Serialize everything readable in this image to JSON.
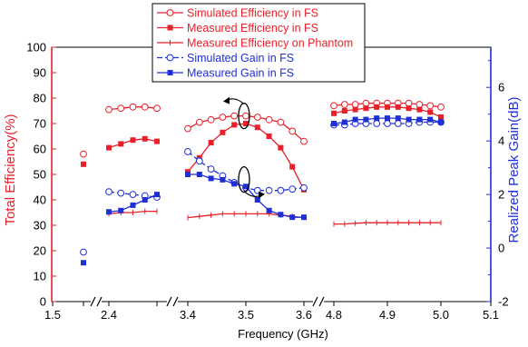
{
  "chart_data": {
    "type": "line",
    "xlabel": "Frequency (GHz)",
    "ylabel_left": "Total Efficiency(%)",
    "ylabel_right": "Realized Peak Gain(dB)",
    "x_ticks": [
      "1.5",
      "2.0",
      "2.4",
      "2.8",
      "3.4",
      "3.5",
      "3.6",
      "4.8",
      "4.9",
      "5.0",
      "5.1"
    ],
    "x_tick_positions": [
      1.5,
      2.0,
      2.4,
      2.8,
      3.4,
      3.5,
      3.6,
      4.8,
      4.9,
      5.0,
      5.1
    ],
    "x_tick_labels_shown": [
      "1.5",
      "",
      "2.4",
      "",
      "3.4",
      "3.5",
      "3.6",
      "4.8",
      "4.9",
      "5.0",
      "5.1"
    ],
    "y_left": {
      "min": 0,
      "max": 100,
      "ticks": [
        0,
        10,
        20,
        30,
        40,
        50,
        60,
        70,
        80,
        90,
        100
      ],
      "color": "#e8202a"
    },
    "y_right": {
      "min": -2,
      "max": 7.5,
      "ticks": [
        -2,
        0,
        2,
        4,
        6
      ],
      "color": "#1f2fd6"
    },
    "axis_breaks": [
      "2.0–2.4",
      "2.8–3.4",
      "3.6–4.8"
    ],
    "legend_position": "top-center",
    "series": [
      {
        "name": "Simulated Efficiency in FS",
        "axis": "left",
        "color": "#e8202a",
        "style": "solid",
        "marker": "open-circle",
        "segments": [
          {
            "x": [
              2.0
            ],
            "y": [
              58
            ]
          },
          {
            "x": [
              2.4,
              2.5,
              2.6,
              2.7,
              2.8
            ],
            "y": [
              75.5,
              76,
              76.5,
              76.5,
              76
            ]
          },
          {
            "x": [
              3.4,
              3.42,
              3.44,
              3.46,
              3.48,
              3.5,
              3.52,
              3.54,
              3.56,
              3.58,
              3.6
            ],
            "y": [
              68,
              70.5,
              71.5,
              72.5,
              73,
              73,
              72.5,
              71.5,
              70.5,
              67,
              63
            ]
          },
          {
            "x": [
              4.8,
              4.82,
              4.84,
              4.86,
              4.88,
              4.9,
              4.92,
              4.94,
              4.96,
              4.98,
              5.0
            ],
            "y": [
              77,
              77.5,
              77.5,
              78,
              78,
              78,
              78,
              78,
              77.5,
              77,
              76.5
            ]
          }
        ]
      },
      {
        "name": "Measured Efficiency in FS",
        "axis": "left",
        "color": "#e8202a",
        "style": "solid",
        "marker": "filled-square",
        "segments": [
          {
            "x": [
              2.0
            ],
            "y": [
              54
            ]
          },
          {
            "x": [
              2.4,
              2.5,
              2.6,
              2.7,
              2.8
            ],
            "y": [
              60.5,
              62,
              63.5,
              64,
              63
            ]
          },
          {
            "x": [
              3.4,
              3.42,
              3.44,
              3.46,
              3.48,
              3.5,
              3.52,
              3.54,
              3.56,
              3.58,
              3.6
            ],
            "y": [
              51,
              56.5,
              62.5,
              66.5,
              69.5,
              70,
              68.5,
              65,
              60.5,
              53,
              44
            ]
          },
          {
            "x": [
              4.8,
              4.82,
              4.84,
              4.86,
              4.88,
              4.9,
              4.92,
              4.94,
              4.96,
              4.98,
              5.0
            ],
            "y": [
              74,
              75,
              75.5,
              76,
              76.5,
              76.5,
              76.5,
              76,
              75.5,
              74.5,
              72.5
            ]
          }
        ]
      },
      {
        "name": "Measured Efficiency on Phantom",
        "axis": "left",
        "color": "#e8202a",
        "style": "solid",
        "marker": "plus",
        "segments": [
          {
            "x": [
              2.4,
              2.5,
              2.6,
              2.7,
              2.8
            ],
            "y": [
              34.5,
              35,
              35,
              35.5,
              35.5
            ]
          },
          {
            "x": [
              3.4,
              3.42,
              3.44,
              3.46,
              3.48,
              3.5,
              3.52,
              3.54,
              3.56,
              3.58,
              3.6
            ],
            "y": [
              33,
              33.5,
              34,
              34.5,
              34.5,
              34.5,
              34.5,
              34.5,
              34,
              33.5,
              33
            ]
          },
          {
            "x": [
              4.8,
              4.82,
              4.84,
              4.86,
              4.88,
              4.9,
              4.92,
              4.94,
              4.96,
              4.98,
              5.0
            ],
            "y": [
              30.5,
              30.5,
              30.8,
              31,
              31,
              31,
              31,
              31,
              31,
              31,
              31
            ]
          }
        ]
      },
      {
        "name": "Simulated Gain in FS",
        "axis": "right",
        "color": "#1f2fd6",
        "style": "dashed",
        "marker": "open-circle",
        "segments": [
          {
            "x": [
              2.0
            ],
            "y": [
              -0.15
            ]
          },
          {
            "x": [
              2.4,
              2.5,
              2.6,
              2.7,
              2.8
            ],
            "y": [
              2.1,
              2.05,
              2.0,
              1.95,
              1.9
            ]
          },
          {
            "x": [
              3.4,
              3.42,
              3.44,
              3.46,
              3.48,
              3.5,
              3.52,
              3.54,
              3.56,
              3.58,
              3.6
            ],
            "y": [
              3.6,
              3.25,
              2.95,
              2.7,
              2.45,
              2.25,
              2.15,
              2.15,
              2.15,
              2.2,
              2.25
            ]
          },
          {
            "x": [
              4.8,
              4.82,
              4.84,
              4.86,
              4.88,
              4.9,
              4.92,
              4.94,
              4.96,
              4.98,
              5.0
            ],
            "y": [
              4.6,
              4.6,
              4.65,
              4.65,
              4.65,
              4.65,
              4.65,
              4.65,
              4.7,
              4.7,
              4.7
            ]
          }
        ]
      },
      {
        "name": "Measured Gain in FS",
        "axis": "right",
        "color": "#1f2fd6",
        "style": "solid",
        "marker": "filled-square",
        "segments": [
          {
            "x": [
              2.0
            ],
            "y": [
              -0.55
            ]
          },
          {
            "x": [
              2.4,
              2.5,
              2.6,
              2.7,
              2.8
            ],
            "y": [
              1.35,
              1.4,
              1.6,
              1.8,
              2.0
            ]
          },
          {
            "x": [
              3.4,
              3.42,
              3.44,
              3.46,
              3.48,
              3.5,
              3.52,
              3.54,
              3.56,
              3.58,
              3.6
            ],
            "y": [
              2.75,
              2.75,
              2.6,
              2.55,
              2.4,
              2.3,
              1.8,
              1.4,
              1.25,
              1.15,
              1.15
            ]
          },
          {
            "x": [
              4.8,
              4.82,
              4.84,
              4.86,
              4.88,
              4.9,
              4.92,
              4.94,
              4.96,
              4.98,
              5.0
            ],
            "y": [
              4.65,
              4.7,
              4.8,
              4.8,
              4.85,
              4.85,
              4.85,
              4.8,
              4.8,
              4.8,
              4.7
            ]
          }
        ]
      }
    ],
    "annotations": [
      {
        "shape": "ellipse",
        "x": 3.5,
        "y": 73,
        "axis": "left",
        "arrow": "left"
      },
      {
        "shape": "ellipse",
        "x": 3.5,
        "y": 48,
        "axis": "left",
        "arrow": "right"
      }
    ]
  }
}
